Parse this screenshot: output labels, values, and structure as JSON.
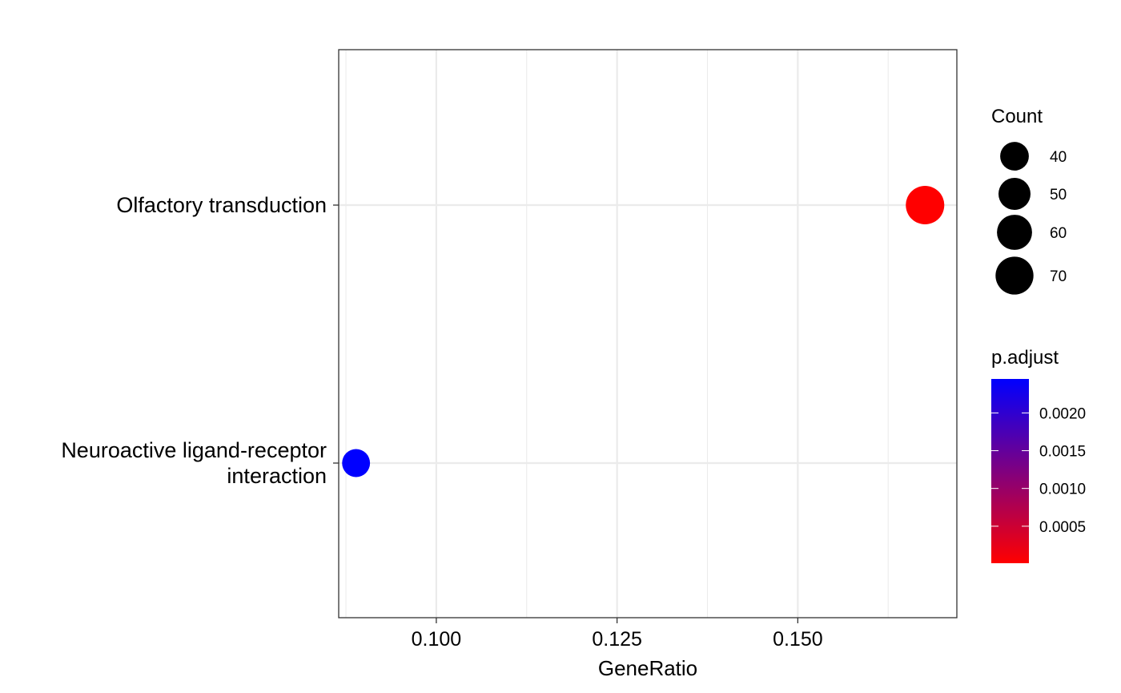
{
  "chart_data": {
    "type": "scatter",
    "title": "",
    "xlabel": "GeneRatio",
    "ylabel": "",
    "xlim": [
      0.0865,
      0.172
    ],
    "x_ticks": [
      0.1,
      0.125,
      0.15
    ],
    "x_tick_labels": [
      "0.100",
      "0.125",
      "0.150"
    ],
    "categories": [
      "Neuroactive ligand-receptor interaction",
      "Olfactory transduction"
    ],
    "category_label_lines": [
      [
        "Neuroactive ligand-receptor",
        "interaction"
      ],
      [
        "Olfactory transduction"
      ]
    ],
    "points": [
      {
        "category": "Olfactory transduction",
        "x": 0.1676,
        "count": 72,
        "p_adjust": 1e-05
      },
      {
        "category": "Neuroactive ligand-receptor interaction",
        "x": 0.0889,
        "count": 38,
        "p_adjust": 0.00245
      }
    ],
    "size_legend": {
      "title": "Count",
      "breaks": [
        40,
        50,
        60,
        70
      ],
      "labels": [
        "40",
        "50",
        "60",
        "70"
      ]
    },
    "color_legend": {
      "title": "p.adjust",
      "breaks": [
        0.0005,
        0.001,
        0.0015,
        0.002
      ],
      "labels": [
        "0.0005",
        "0.0010",
        "0.0015",
        "0.0020"
      ],
      "range": [
        1e-05,
        0.00245
      ],
      "low_color": "#ff0000",
      "high_color": "#0000ff"
    },
    "grid": true,
    "legend_position": "right"
  }
}
